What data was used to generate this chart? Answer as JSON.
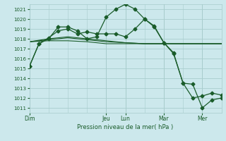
{
  "xlabel": "Pression niveau de la mer( hPa )",
  "bg_color": "#cce8ec",
  "grid_color": "#a8cccc",
  "line_color": "#1a5c2a",
  "ylim": [
    1010.5,
    1021.5
  ],
  "yticks": [
    1011,
    1012,
    1013,
    1014,
    1015,
    1016,
    1017,
    1018,
    1019,
    1020,
    1021
  ],
  "xlim": [
    0,
    240
  ],
  "day_positions": [
    0,
    96,
    120,
    168,
    216
  ],
  "day_labels": [
    "Dim",
    "Jeu",
    "Lun",
    "Mar",
    "Mer"
  ],
  "vline_positions": [
    0,
    96,
    120,
    168,
    216
  ],
  "series": [
    {
      "x": [
        0,
        24,
        48,
        72,
        96,
        120,
        144,
        168,
        192,
        216,
        240
      ],
      "y": [
        1017.7,
        1017.8,
        1017.8,
        1017.7,
        1017.5,
        1017.5,
        1017.5,
        1017.5,
        1017.5,
        1017.5,
        1017.5
      ],
      "marker": null,
      "lw": 0.8
    },
    {
      "x": [
        0,
        24,
        48,
        72,
        96,
        120,
        144,
        168,
        192,
        216,
        240
      ],
      "y": [
        1017.7,
        1017.9,
        1018.1,
        1017.9,
        1017.7,
        1017.6,
        1017.5,
        1017.5,
        1017.5,
        1017.5,
        1017.5
      ],
      "marker": null,
      "lw": 0.8
    },
    {
      "x": [
        0,
        24,
        48,
        72,
        96,
        120,
        144,
        168,
        192,
        216,
        240
      ],
      "y": [
        1017.7,
        1018.0,
        1018.2,
        1018.0,
        1017.8,
        1017.6,
        1017.5,
        1017.5,
        1017.5,
        1017.5,
        1017.5
      ],
      "marker": null,
      "lw": 0.8
    },
    {
      "x": [
        0,
        12,
        24,
        36,
        48,
        60,
        72,
        84,
        96,
        108,
        120,
        132,
        144,
        156,
        168,
        180,
        192,
        204,
        216,
        228,
        240
      ],
      "y": [
        1015.2,
        1017.5,
        1018.1,
        1018.8,
        1019.0,
        1018.5,
        1018.7,
        1018.5,
        1018.5,
        1018.5,
        1018.2,
        1019.0,
        1020.0,
        1019.3,
        1017.6,
        1016.6,
        1013.5,
        1012.0,
        1012.2,
        1012.5,
        1012.3
      ],
      "marker": "D",
      "markersize": 2.5,
      "lw": 0.9
    },
    {
      "x": [
        0,
        12,
        24,
        36,
        48,
        60,
        72,
        84,
        96,
        108,
        120,
        132,
        144,
        156,
        168,
        180,
        192,
        204,
        216,
        228,
        240
      ],
      "y": [
        1015.2,
        1017.5,
        1018.0,
        1019.2,
        1019.2,
        1018.8,
        1018.0,
        1018.2,
        1020.2,
        1021.0,
        1021.5,
        1021.0,
        1020.0,
        1019.2,
        1017.6,
        1016.5,
        1013.5,
        1013.4,
        1011.0,
        1011.8,
        1012.0
      ],
      "marker": "D",
      "markersize": 2.5,
      "lw": 0.9
    }
  ]
}
